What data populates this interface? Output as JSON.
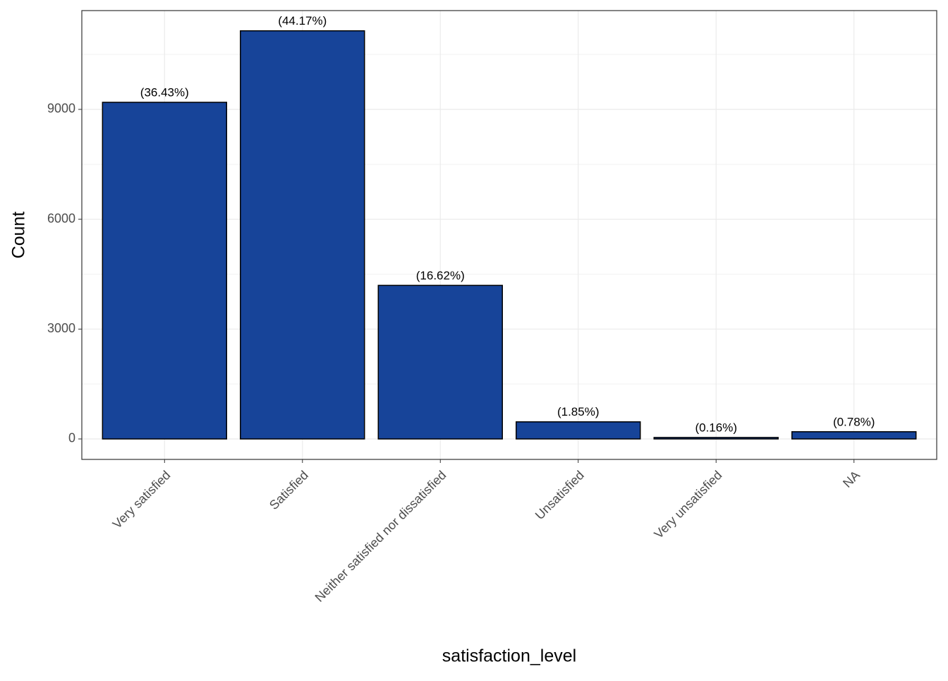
{
  "chart_data": {
    "type": "bar",
    "x_label": "satisfaction_level",
    "y_label": "Count",
    "categories": [
      "Very satisfied",
      "Satisfied",
      "Neither satisfied nor dissatisfied",
      "Unsatisfied",
      "Very unsatisfied",
      "NA"
    ],
    "values": [
      9193,
      11146,
      4194,
      467,
      40,
      197
    ],
    "percents": [
      36.43,
      44.17,
      16.62,
      1.85,
      0.16,
      0.78
    ],
    "percent_labels": [
      "(36.43%)",
      "(44.17%)",
      "(16.62%)",
      "(1.85%)",
      "(0.16%)",
      "(0.78%)"
    ],
    "color": "#174499",
    "ylim": [
      -559,
      11698
    ],
    "yticks": [
      0,
      3000,
      6000,
      9000
    ],
    "grid": true
  }
}
